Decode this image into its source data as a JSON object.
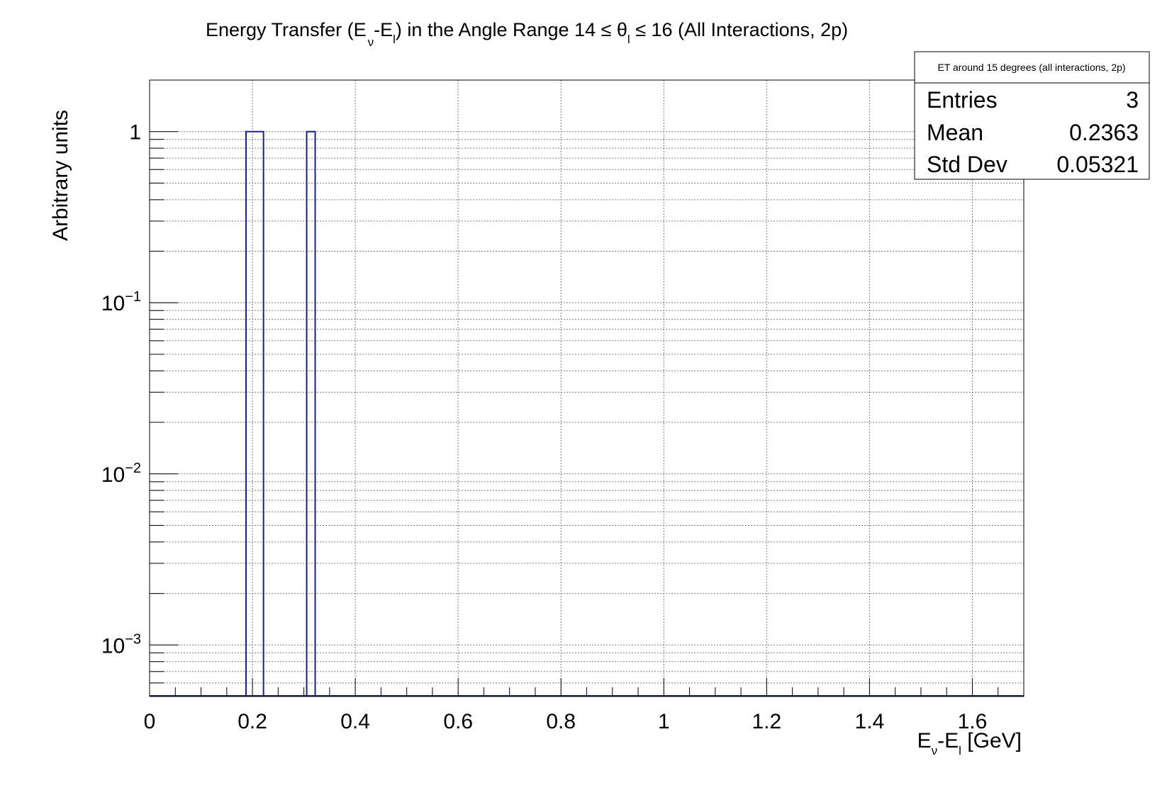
{
  "chart_data": {
    "type": "bar",
    "title": {
      "prefix": "Energy Transfer (E",
      "nu_sub": "ν",
      "mid1": "-E",
      "l_sub": "l",
      "mid2": ") in the Angle Range 14  ≤ θ",
      "theta_sub": "l",
      "suffix": " ≤ 16 (All Interactions, 2p)"
    },
    "xlabel": {
      "e1": "E",
      "nu_sub": "ν",
      "mid": "-E",
      "l_sub": "l",
      "unit": " [GeV]"
    },
    "ylabel": "Arbitrary units",
    "xlim": [
      0,
      1.7
    ],
    "ylim": [
      0.0005,
      2
    ],
    "yscale": "log",
    "grid": true,
    "x_ticks": [
      {
        "value": 0,
        "label": "0"
      },
      {
        "value": 0.2,
        "label": "0.2"
      },
      {
        "value": 0.4,
        "label": "0.4"
      },
      {
        "value": 0.6,
        "label": "0.6"
      },
      {
        "value": 0.8,
        "label": "0.8"
      },
      {
        "value": 1.0,
        "label": "1"
      },
      {
        "value": 1.2,
        "label": "1.2"
      },
      {
        "value": 1.4,
        "label": "1.4"
      },
      {
        "value": 1.6,
        "label": "1.6"
      }
    ],
    "y_ticks": [
      {
        "value": 1,
        "base": "1",
        "exp": ""
      },
      {
        "value": 0.1,
        "base": "10",
        "exp": "−1"
      },
      {
        "value": 0.01,
        "base": "10",
        "exp": "−2"
      },
      {
        "value": 0.001,
        "base": "10",
        "exp": "−3"
      }
    ],
    "bins": [
      {
        "x0": 0.1875,
        "x1": 0.2215,
        "value": 1
      },
      {
        "x0": 0.3055,
        "x1": 0.322,
        "value": 1
      }
    ],
    "line_color": "#1a237e",
    "stats": {
      "title": "ET around 15 degrees (all interactions, 2p)",
      "rows": [
        {
          "label": "Entries",
          "value": "3"
        },
        {
          "label": "Mean",
          "value": "0.2363"
        },
        {
          "label": "Std Dev",
          "value": "0.05321"
        }
      ]
    }
  }
}
